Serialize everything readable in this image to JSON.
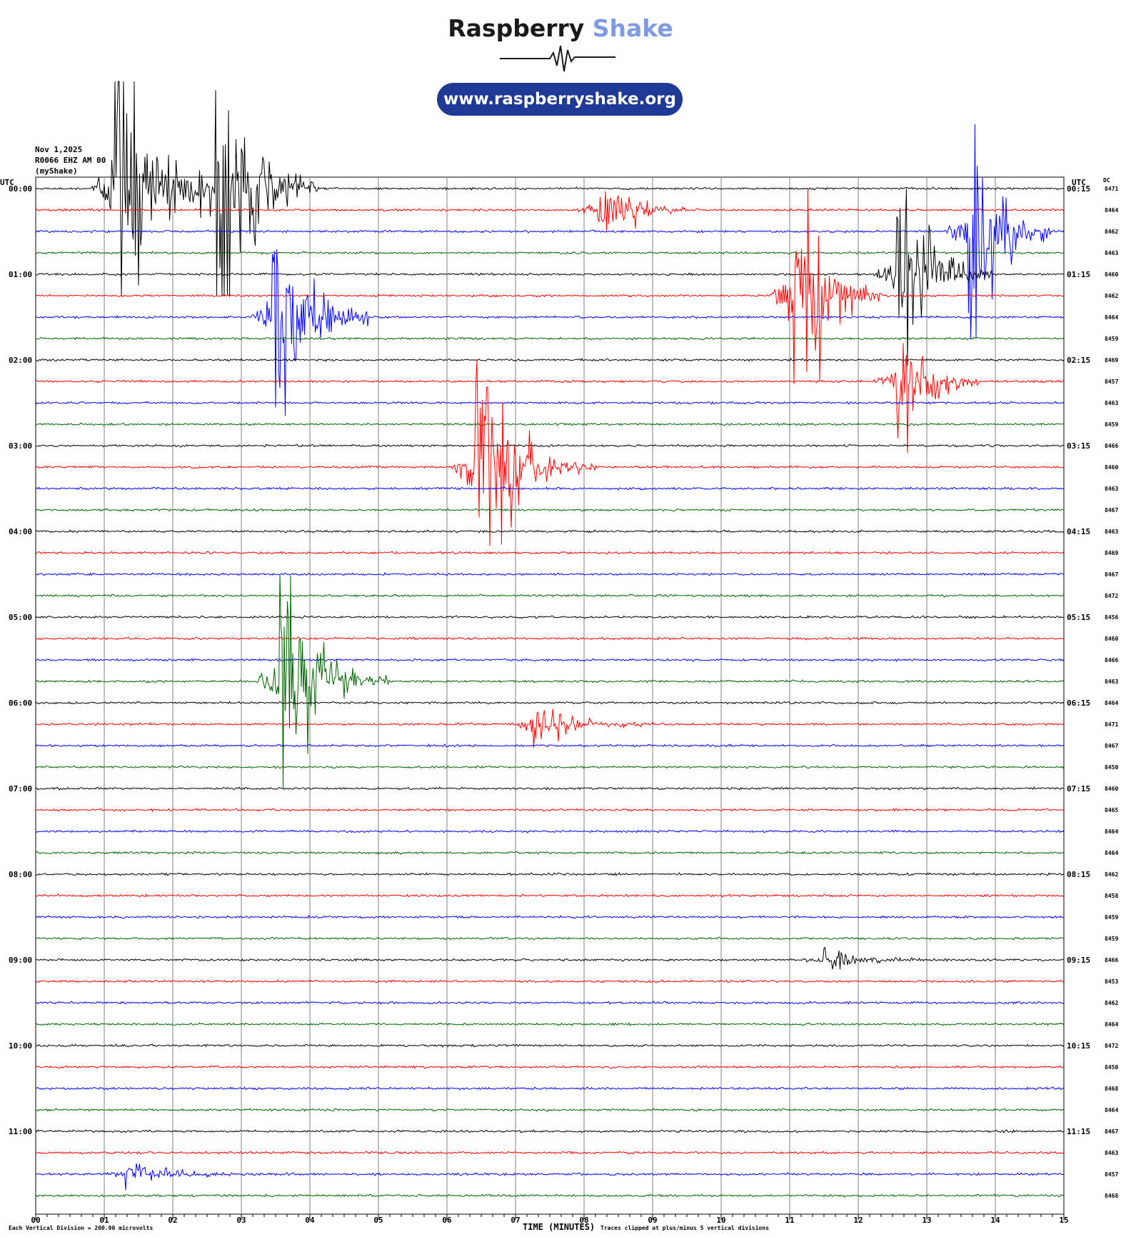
{
  "brand": {
    "name_part1": "Raspberry",
    "name_part2": "Shake",
    "url": "www.raspberryshake.org",
    "colors": {
      "dark": "#1a1a1a",
      "accent": "#7f9be3",
      "pill": "#1e3a96"
    }
  },
  "header": {
    "date": "Nov 1,2025",
    "station": "R0066 EHZ AM 00",
    "source": "(myShake)"
  },
  "footer": {
    "division_note": "Each Vertical Division =  200.00 microvolts",
    "xlabel": "TIME (MINUTES)",
    "clip_note": "Traces clipped at plus/minus 5 vertical divisions"
  },
  "chart_data": {
    "type": "line",
    "subtype": "helicorder",
    "left_axis_title": "UTC",
    "right_axis_title": "UTC",
    "dc_title": "DC",
    "xlabel": "TIME (MINUTES)",
    "x_ticks": [
      "00",
      "01",
      "02",
      "03",
      "04",
      "05",
      "06",
      "07",
      "08",
      "09",
      "10",
      "11",
      "12",
      "13",
      "14",
      "15"
    ],
    "xlim": [
      0,
      15
    ],
    "row_minutes": 15,
    "trace_colors": [
      "#000000",
      "#ff0000",
      "#0000ff",
      "#006400"
    ],
    "grid": true,
    "left_labels": [
      "00:00",
      "01:00",
      "02:00",
      "03:00",
      "04:00",
      "05:00",
      "06:00",
      "07:00",
      "08:00",
      "09:00",
      "10:00",
      "11:00"
    ],
    "right_labels": [
      "00:15",
      "01:15",
      "02:15",
      "03:15",
      "04:15",
      "05:15",
      "06:15",
      "07:15",
      "08:15",
      "09:15",
      "10:15",
      "11:15"
    ],
    "dc_values": [
      "8471",
      "8464",
      "8462",
      "8463",
      "8460",
      "8462",
      "8464",
      "8459",
      "8469",
      "8457",
      "8463",
      "8459",
      "8466",
      "8460",
      "8463",
      "8467",
      "8463",
      "8469",
      "8467",
      "8472",
      "8456",
      "8460",
      "8466",
      "8463",
      "8464",
      "8471",
      "8467",
      "8450",
      "8460",
      "8465",
      "8464",
      "8464",
      "8462",
      "8458",
      "8459",
      "8459",
      "8466",
      "8453",
      "8462",
      "8464",
      "8472",
      "8450",
      "8468",
      "8464",
      "8467",
      "8463",
      "8457",
      "8468"
    ],
    "events": [
      {
        "row": 0,
        "minute": 1.15,
        "amp": 18,
        "len": 1.6
      },
      {
        "row": 0,
        "minute": 2.62,
        "amp": 18,
        "len": 1.5
      },
      {
        "row": 1,
        "minute": 8.2,
        "amp": 3.5,
        "len": 1.3
      },
      {
        "row": 2,
        "minute": 13.6,
        "amp": 14,
        "len": 1.2
      },
      {
        "row": 4,
        "minute": 12.55,
        "amp": 11,
        "len": 1.4
      },
      {
        "row": 5,
        "minute": 11.05,
        "amp": 12,
        "len": 1.3
      },
      {
        "row": 6,
        "minute": 3.45,
        "amp": 12,
        "len": 1.4
      },
      {
        "row": 9,
        "minute": 12.55,
        "amp": 6,
        "len": 1.2
      },
      {
        "row": 13,
        "minute": 6.4,
        "amp": 14,
        "len": 1.8
      },
      {
        "row": 23,
        "minute": 3.55,
        "amp": 14,
        "len": 1.6
      },
      {
        "row": 25,
        "minute": 7.25,
        "amp": 3,
        "len": 1.8
      },
      {
        "row": 36,
        "minute": 11.5,
        "amp": 1.0,
        "len": 2.0
      },
      {
        "row": 46,
        "minute": 1.3,
        "amp": 1.4,
        "len": 2.5
      }
    ]
  }
}
